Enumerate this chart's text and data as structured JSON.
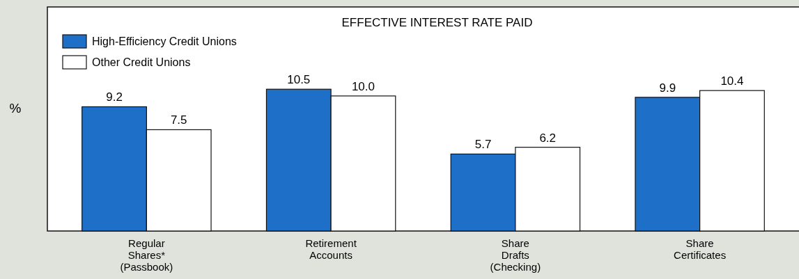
{
  "chart_data": {
    "type": "bar",
    "title": "EFFECTIVE INTEREST RATE PAID",
    "ylabel": "%",
    "categories": [
      "Regular\nShares*\n(Passbook)",
      "Retirement\nAccounts",
      "Share\nDrafts\n(Checking)",
      "Share\nCertificates"
    ],
    "series": [
      {
        "name": "High-Efficiency Credit Unions",
        "color": "#1e6fc8",
        "values": [
          9.2,
          10.5,
          5.7,
          9.9
        ],
        "value_labels": [
          "9.2",
          "10.5",
          "5.7",
          "9.9"
        ]
      },
      {
        "name": "Other Credit Unions",
        "color": "#ffffff",
        "values": [
          7.5,
          10.0,
          6.2,
          10.4
        ],
        "value_labels": [
          "7.5",
          "10.0",
          "6.2",
          "10.4"
        ]
      }
    ],
    "legend": "top left"
  }
}
